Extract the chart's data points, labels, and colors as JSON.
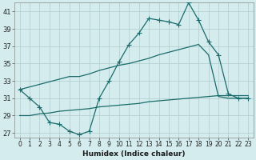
{
  "xlabel": "Humidex (Indice chaleur)",
  "ylabel": "",
  "xlim": [
    -0.5,
    23.5
  ],
  "ylim": [
    26.5,
    42.0
  ],
  "yticks": [
    27,
    29,
    31,
    33,
    35,
    37,
    39,
    41
  ],
  "xticks": [
    0,
    1,
    2,
    3,
    4,
    5,
    6,
    7,
    8,
    9,
    10,
    11,
    12,
    13,
    14,
    15,
    16,
    17,
    18,
    19,
    20,
    21,
    22,
    23
  ],
  "background_color": "#d4ecee",
  "grid_color": "#b0cccc",
  "line_color": "#1a6b6b",
  "lines": [
    {
      "x": [
        0,
        1,
        2,
        3,
        4,
        5,
        6,
        7,
        8,
        9,
        10,
        11,
        12,
        13,
        14,
        15,
        16,
        17,
        18,
        19,
        20,
        21,
        22,
        23
      ],
      "y": [
        32.0,
        31.0,
        30.0,
        28.2,
        28.0,
        27.2,
        26.8,
        27.2,
        31.0,
        33.0,
        35.2,
        37.2,
        38.5,
        40.2,
        40.0,
        39.8,
        39.5,
        42.0,
        40.0,
        37.5,
        36.0,
        31.5,
        31.0,
        31.0
      ],
      "marker": "+",
      "linewidth": 0.9,
      "markersize": 4
    },
    {
      "x": [
        0,
        1,
        2,
        3,
        4,
        5,
        6,
        7,
        8,
        9,
        10,
        11,
        12,
        13,
        14,
        15,
        16,
        17,
        18,
        19,
        20,
        21,
        22,
        23
      ],
      "y": [
        32.0,
        32.3,
        32.6,
        32.9,
        33.2,
        33.5,
        33.5,
        33.8,
        34.2,
        34.5,
        34.8,
        35.0,
        35.3,
        35.6,
        36.0,
        36.3,
        36.6,
        36.9,
        37.2,
        36.0,
        31.2,
        31.0,
        31.0,
        31.0
      ],
      "marker": null,
      "linewidth": 0.9,
      "markersize": 0
    },
    {
      "x": [
        0,
        1,
        2,
        3,
        4,
        5,
        6,
        7,
        8,
        9,
        10,
        11,
        12,
        13,
        14,
        15,
        16,
        17,
        18,
        19,
        20,
        21,
        22,
        23
      ],
      "y": [
        29.0,
        29.0,
        29.2,
        29.3,
        29.5,
        29.6,
        29.7,
        29.8,
        30.0,
        30.1,
        30.2,
        30.3,
        30.4,
        30.6,
        30.7,
        30.8,
        30.9,
        31.0,
        31.1,
        31.2,
        31.3,
        31.3,
        31.3,
        31.3
      ],
      "marker": null,
      "linewidth": 0.9,
      "markersize": 0
    }
  ]
}
